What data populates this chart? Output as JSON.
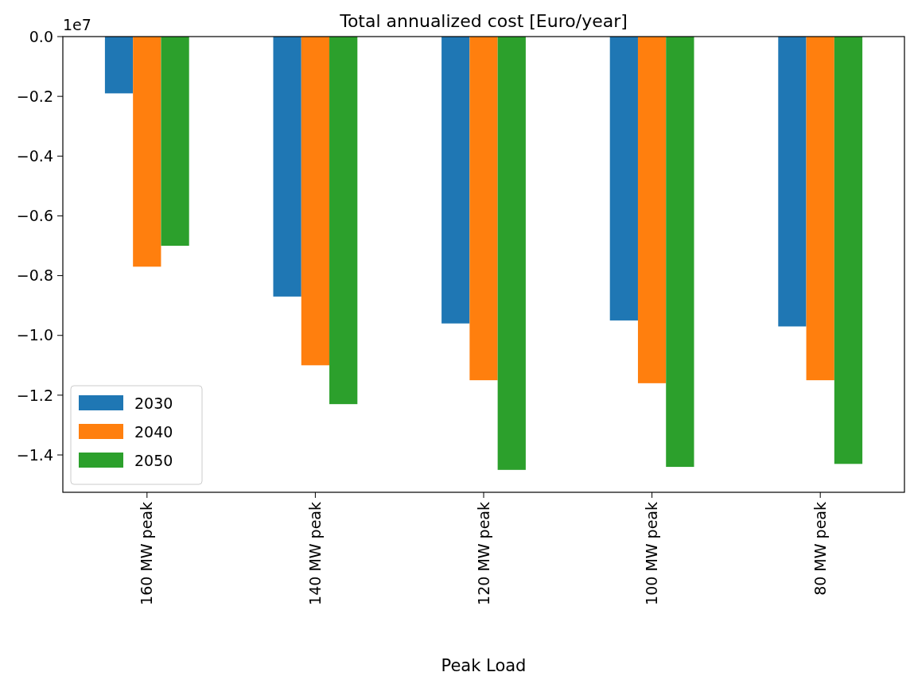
{
  "chart_data": {
    "type": "bar",
    "title": "Total annualized cost [Euro/year]",
    "xlabel": "Peak Load",
    "annotations": [
      "1e7"
    ],
    "categories": [
      "160 MW peak",
      "140 MW peak",
      "120 MW peak",
      "100 MW peak",
      "80 MW peak"
    ],
    "series": [
      {
        "name": "2030",
        "color": "#1f77b4",
        "values": [
          -0.19,
          -0.87,
          -0.96,
          -0.95,
          -0.97
        ]
      },
      {
        "name": "2040",
        "color": "#ff7f0e",
        "values": [
          -0.77,
          -1.1,
          -1.15,
          -1.16,
          -1.15
        ]
      },
      {
        "name": "2050",
        "color": "#2ca02c",
        "values": [
          -0.7,
          -1.23,
          -1.45,
          -1.44,
          -1.43
        ]
      }
    ],
    "ylim": [
      -1.525,
      0
    ],
    "yticks": [
      {
        "value": -1.4,
        "label": "−1.4"
      },
      {
        "value": -1.2,
        "label": "−1.2"
      },
      {
        "value": -1.0,
        "label": "−1.0"
      },
      {
        "value": -0.8,
        "label": "−0.8"
      },
      {
        "value": -0.6,
        "label": "−0.6"
      },
      {
        "value": -0.4,
        "label": "−0.4"
      },
      {
        "value": -0.2,
        "label": "−0.2"
      },
      {
        "value": 0,
        "label": "0.0"
      }
    ],
    "grid": false,
    "legend": "bottom left"
  }
}
